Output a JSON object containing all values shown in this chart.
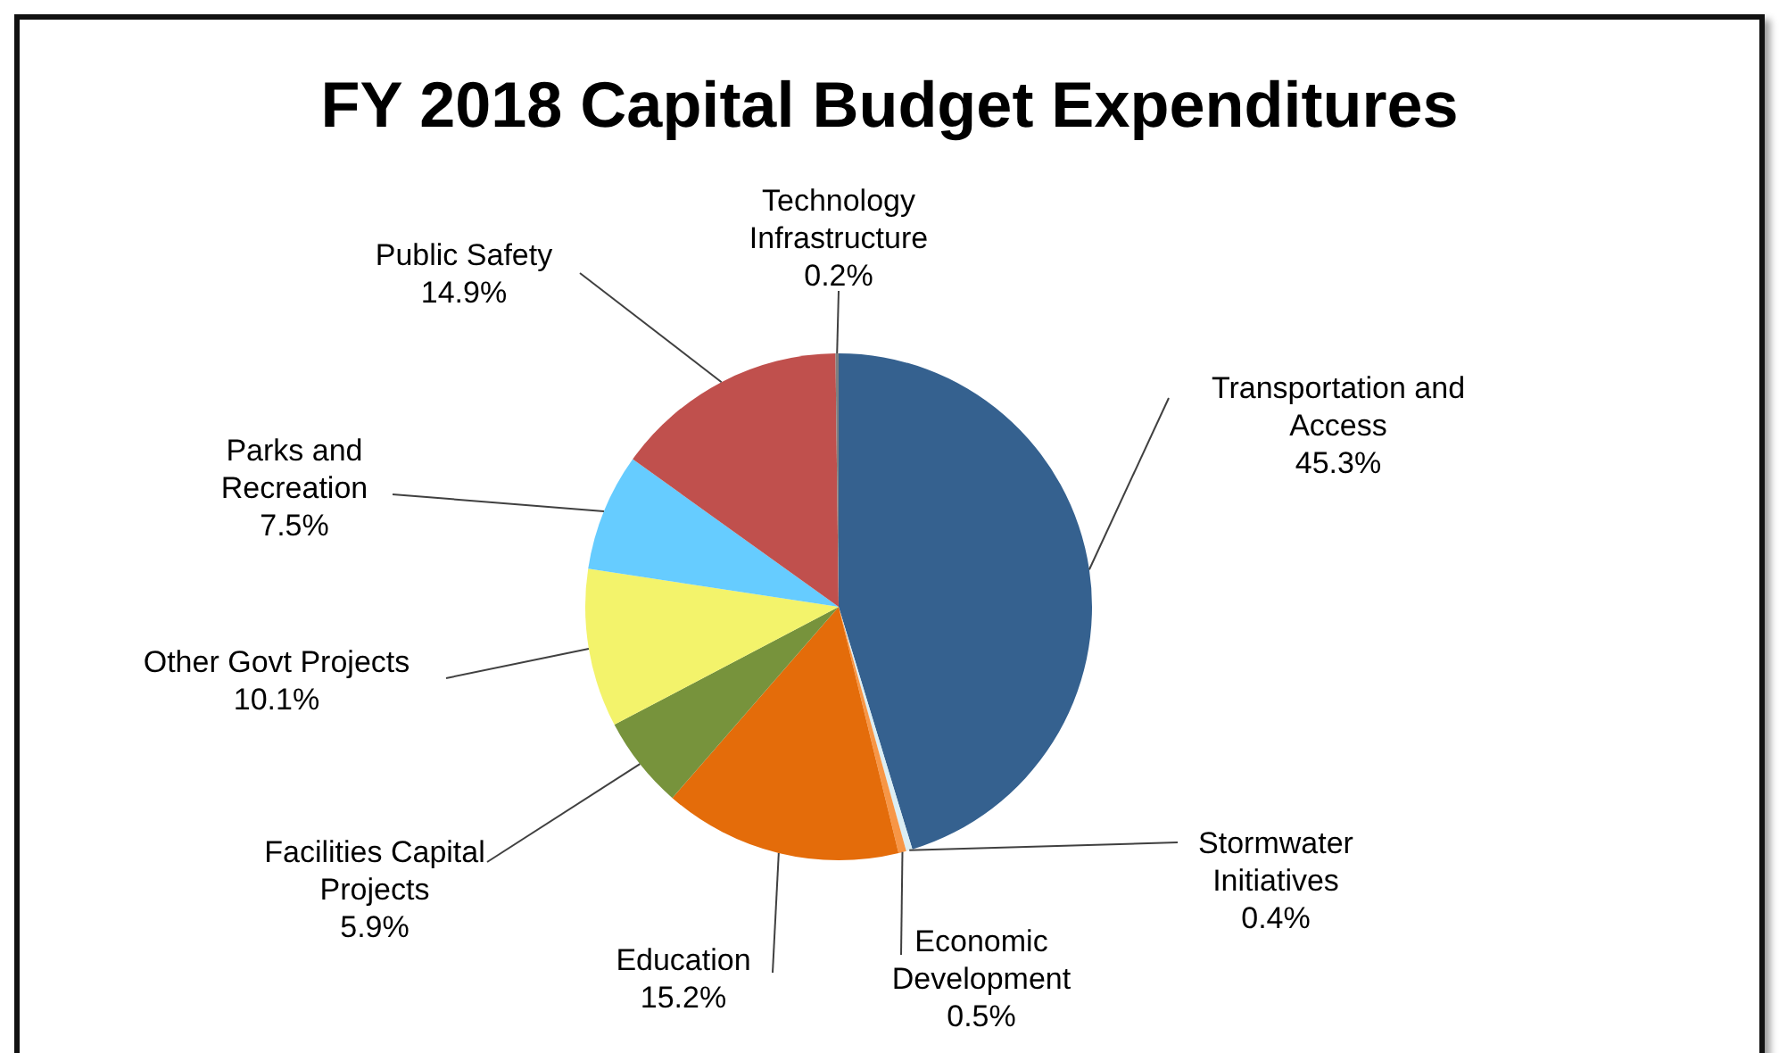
{
  "chart_data": {
    "type": "pie",
    "title": "FY 2018 Capital Budget Expenditures",
    "categories": [
      "Transportation and Access",
      "Stormwater Initiatives",
      "Economic Development",
      "Education",
      "Facilities Capital Projects",
      "Other Govt Projects",
      "Parks and Recreation",
      "Public Safety",
      "Technology Infrastructure"
    ],
    "values": [
      45.3,
      0.4,
      0.5,
      15.2,
      5.9,
      10.1,
      7.5,
      14.9,
      0.2
    ],
    "colors": [
      "#35618f",
      "#dbeef4",
      "#f79646",
      "#e46c0a",
      "#77933c",
      "#f3f36b",
      "#66ccff",
      "#c0504d",
      "#7f7f7f"
    ],
    "value_labels": [
      "45.3%",
      "0.4%",
      "0.5%",
      "15.2%",
      "5.9%",
      "10.1%",
      "7.5%",
      "14.9%",
      "0.2%"
    ]
  }
}
